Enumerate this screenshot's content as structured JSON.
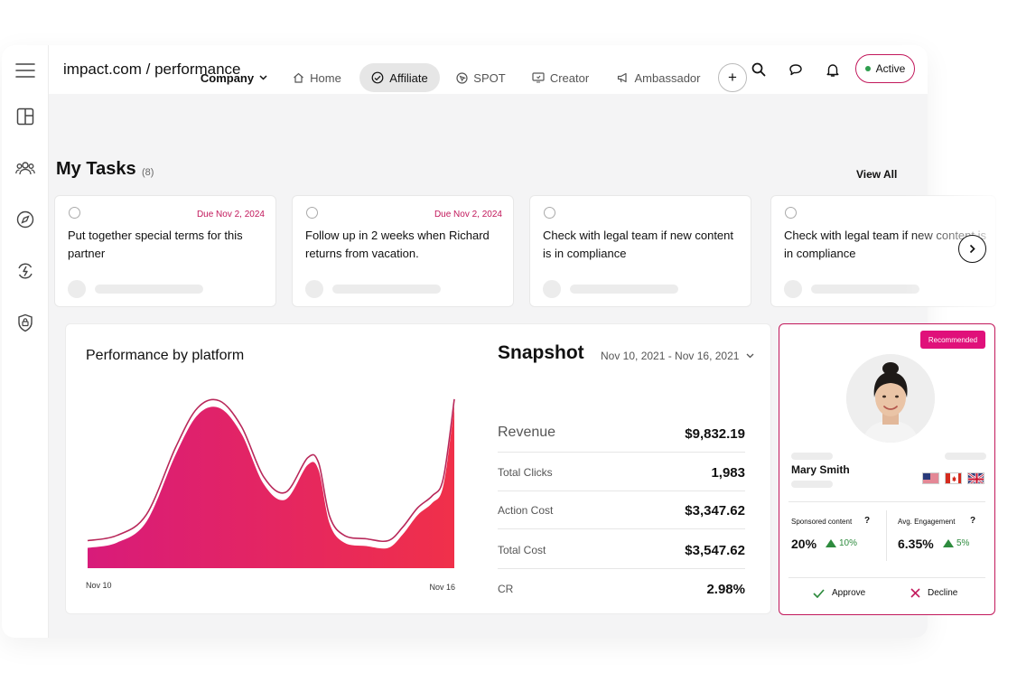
{
  "topbar": {
    "breadcrumb": "impact.com / performance",
    "status": "Active"
  },
  "colors": {
    "accent": "#c2185b",
    "badge": "#e0107a",
    "positive": "#2e8b3e"
  },
  "icons": {
    "sidebar": [
      "menu-icon",
      "dashboard-icon",
      "users-icon",
      "compass-icon",
      "sync-bolt-icon",
      "shield-lock-icon"
    ],
    "topbar": [
      "search-icon",
      "chat-icon",
      "bell-icon"
    ]
  },
  "tabs": {
    "company": "Company",
    "items": [
      {
        "label": "Home",
        "icon": "home-icon"
      },
      {
        "label": "Affiliate",
        "icon": "handshake-icon"
      },
      {
        "label": "SPOT",
        "icon": "cursor-icon"
      },
      {
        "label": "Creator",
        "icon": "screen-icon"
      },
      {
        "label": "Ambassador",
        "icon": "megaphone-icon"
      }
    ],
    "add": "+"
  },
  "tasks": {
    "title": "My Tasks",
    "count": "(8)",
    "view_all": "View All",
    "items": [
      {
        "due": "Due Nov 2, 2024",
        "text": "Put together special terms for this partner"
      },
      {
        "due": "Due Nov 2, 2024",
        "text": "Follow up in 2 weeks when Richard returns from vacation."
      },
      {
        "due": "",
        "text": "Check with legal team if new content is in compliance"
      },
      {
        "due": "",
        "text": "Check with legal team if new content is in compliance"
      }
    ]
  },
  "chart_data": {
    "type": "area",
    "title": "Performance by platform",
    "xlabel": "",
    "ylabel": "",
    "x_tick_labels": [
      "Nov 10",
      "Nov 16"
    ],
    "x": [
      0,
      0.08,
      0.16,
      0.24,
      0.3,
      0.36,
      0.42,
      0.48,
      0.54,
      0.6,
      0.63,
      0.66,
      0.7,
      0.76,
      0.82,
      0.86,
      0.9,
      0.94,
      0.97,
      1.0
    ],
    "series": [
      {
        "name": "platform",
        "values": [
          16,
          19,
          31,
          70,
          93,
          97,
          82,
          53,
          44,
          64,
          61,
          30,
          19,
          17,
          16,
          24,
          35,
          42,
          52,
          98
        ]
      }
    ],
    "ylim": [
      0,
      110
    ],
    "grid": false
  },
  "snapshot": {
    "title": "Snapshot",
    "range": "Nov 10, 2021 - Nov 16, 2021",
    "metrics": [
      {
        "label": "Revenue",
        "value": "$9,832.19"
      },
      {
        "label": "Total Clicks",
        "value": "1,983"
      },
      {
        "label": "Action Cost",
        "value": "$3,347.62"
      },
      {
        "label": "Total Cost",
        "value": "$3,547.62"
      },
      {
        "label": "CR",
        "value": "2.98%"
      }
    ]
  },
  "recommended": {
    "badge": "Recommended",
    "name": "Mary Smith",
    "flags": [
      "us-flag-icon",
      "canada-flag-icon",
      "uk-flag-icon"
    ],
    "stats": [
      {
        "label": "Sponsored content",
        "value": "20%",
        "change": "10%"
      },
      {
        "label": "Avg. Engagement",
        "value": "6.35%",
        "change": "5%"
      }
    ],
    "approve": "Approve",
    "decline": "Decline"
  }
}
